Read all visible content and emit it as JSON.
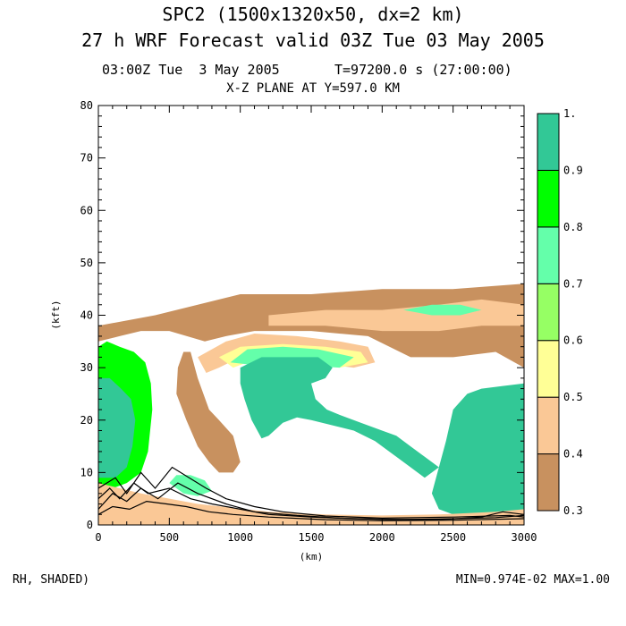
{
  "header": {
    "title_line1": "SPC2 (1500x1320x50, dx=2 km)",
    "title_line2": "27 h WRF Forecast valid 03Z Tue 03 May 2005",
    "time_left": "03:00Z Tue  3 May 2005",
    "time_right": "T=97200.0 s (27:00:00)",
    "plane": "X-Z PLANE AT Y=597.0 KM"
  },
  "footer": {
    "field": "RH, SHADED)",
    "minmax": "MIN=0.974E-02 MAX=1.00"
  },
  "chart_data": {
    "type": "heatmap",
    "title": "X-Z PLANE AT Y=597.0 KM",
    "xlabel": "(km)",
    "ylabel": "(kft)",
    "xlim": [
      0,
      3000
    ],
    "ylim": [
      0,
      80
    ],
    "xticks": [
      "0",
      "500",
      "1000",
      "1500",
      "2000",
      "2500",
      "3000"
    ],
    "yticks": [
      "0",
      "10",
      "20",
      "30",
      "40",
      "50",
      "60",
      "70",
      "80"
    ],
    "colorbar": {
      "levels": [
        "0.3",
        "0.4",
        "0.5",
        "0.6",
        "0.7",
        "0.8",
        "0.9",
        "1."
      ],
      "colors": [
        "#c8915f",
        "#fac896",
        "#ffff96",
        "#96ff64",
        "#64ffaa",
        "#00ff00",
        "#32c896"
      ]
    },
    "fields": [
      {
        "name": "band-upper-brown",
        "level": 0.35,
        "points": [
          [
            0,
            38
          ],
          [
            400,
            40
          ],
          [
            1000,
            44
          ],
          [
            1500,
            44
          ],
          [
            2000,
            45
          ],
          [
            2500,
            45
          ],
          [
            3000,
            46
          ],
          [
            3000,
            30
          ],
          [
            2800,
            33
          ],
          [
            2500,
            32
          ],
          [
            2200,
            32
          ],
          [
            1900,
            36
          ],
          [
            1500,
            37
          ],
          [
            1100,
            37
          ],
          [
            900,
            36
          ],
          [
            750,
            35
          ],
          [
            500,
            37
          ],
          [
            300,
            37
          ],
          [
            150,
            36
          ],
          [
            0,
            35
          ]
        ]
      },
      {
        "name": "upper-peach-streaks",
        "level": 0.45,
        "points": [
          [
            1200,
            40
          ],
          [
            1600,
            41
          ],
          [
            2000,
            41
          ],
          [
            2400,
            42
          ],
          [
            2700,
            43
          ],
          [
            3000,
            42
          ],
          [
            3000,
            38
          ],
          [
            2700,
            38
          ],
          [
            2400,
            37
          ],
          [
            2000,
            37
          ],
          [
            1600,
            38
          ],
          [
            1200,
            38
          ]
        ]
      },
      {
        "name": "upper-green-streak",
        "level": 0.75,
        "points": [
          [
            2150,
            41
          ],
          [
            2350,
            42
          ],
          [
            2550,
            42
          ],
          [
            2700,
            41
          ],
          [
            2550,
            40
          ],
          [
            2350,
            40
          ]
        ]
      },
      {
        "name": "arc-peach",
        "level": 0.45,
        "points": [
          [
            700,
            32
          ],
          [
            900,
            35
          ],
          [
            1100,
            36.5
          ],
          [
            1400,
            36
          ],
          [
            1700,
            35
          ],
          [
            1900,
            34
          ],
          [
            1950,
            31
          ],
          [
            1800,
            30
          ],
          [
            1500,
            31
          ],
          [
            1200,
            32.5
          ],
          [
            1000,
            32
          ],
          [
            850,
            30
          ],
          [
            760,
            29
          ]
        ]
      },
      {
        "name": "arc-yellow",
        "level": 0.55,
        "points": [
          [
            850,
            32
          ],
          [
            1000,
            34
          ],
          [
            1300,
            34.5
          ],
          [
            1600,
            34
          ],
          [
            1850,
            33
          ],
          [
            1900,
            31
          ],
          [
            1700,
            30
          ],
          [
            1400,
            31
          ],
          [
            1100,
            31.5
          ],
          [
            950,
            30
          ]
        ]
      },
      {
        "name": "arc-green",
        "level": 0.7,
        "points": [
          [
            930,
            31
          ],
          [
            1050,
            33.5
          ],
          [
            1300,
            34
          ],
          [
            1550,
            33.5
          ],
          [
            1800,
            32
          ],
          [
            1700,
            30
          ],
          [
            1400,
            30.5
          ],
          [
            1100,
            30.5
          ]
        ]
      },
      {
        "name": "core-left",
        "level": 0.95,
        "points": [
          [
            1000,
            30
          ],
          [
            1150,
            32
          ],
          [
            1350,
            32
          ],
          [
            1550,
            32
          ],
          [
            1650,
            30
          ],
          [
            1600,
            28
          ],
          [
            1500,
            27
          ],
          [
            1530,
            24
          ],
          [
            1610,
            22
          ],
          [
            1700,
            21
          ],
          [
            1850,
            19.5
          ],
          [
            2000,
            18
          ],
          [
            2100,
            17
          ],
          [
            2200,
            15
          ],
          [
            2300,
            13
          ],
          [
            2400,
            11
          ],
          [
            2300,
            9
          ],
          [
            2200,
            11
          ],
          [
            2100,
            13
          ],
          [
            1950,
            16
          ],
          [
            1800,
            18
          ],
          [
            1650,
            19
          ],
          [
            1500,
            20
          ],
          [
            1400,
            20.5
          ],
          [
            1300,
            19.5
          ],
          [
            1200,
            17
          ],
          [
            1150,
            16.5
          ],
          [
            1080,
            20
          ],
          [
            1030,
            24
          ],
          [
            1000,
            27
          ]
        ]
      },
      {
        "name": "core-right",
        "level": 0.95,
        "points": [
          [
            2400,
            11
          ],
          [
            2450,
            16
          ],
          [
            2500,
            22
          ],
          [
            2600,
            25
          ],
          [
            2700,
            26
          ],
          [
            2850,
            26.5
          ],
          [
            3000,
            27
          ],
          [
            3000,
            2
          ],
          [
            2700,
            2
          ],
          [
            2500,
            2
          ],
          [
            2400,
            3
          ],
          [
            2350,
            6
          ]
        ]
      },
      {
        "name": "left-column-green",
        "level": 0.85,
        "points": [
          [
            0,
            34
          ],
          [
            60,
            35
          ],
          [
            150,
            34
          ],
          [
            250,
            33
          ],
          [
            330,
            31
          ],
          [
            370,
            27
          ],
          [
            380,
            22
          ],
          [
            350,
            14
          ],
          [
            300,
            10
          ],
          [
            200,
            8
          ],
          [
            100,
            7
          ],
          [
            0,
            7
          ]
        ]
      },
      {
        "name": "left-column-core",
        "level": 0.95,
        "points": [
          [
            0,
            28
          ],
          [
            80,
            28
          ],
          [
            160,
            26
          ],
          [
            230,
            24
          ],
          [
            260,
            20
          ],
          [
            240,
            15
          ],
          [
            200,
            11
          ],
          [
            120,
            9
          ],
          [
            40,
            9
          ],
          [
            0,
            9
          ]
        ]
      },
      {
        "name": "plume-brown",
        "level": 0.35,
        "points": [
          [
            550,
            25
          ],
          [
            620,
            20
          ],
          [
            700,
            15
          ],
          [
            780,
            12
          ],
          [
            850,
            10
          ],
          [
            950,
            10
          ],
          [
            1000,
            12
          ],
          [
            950,
            17
          ],
          [
            850,
            20
          ],
          [
            780,
            22
          ],
          [
            700,
            28
          ],
          [
            650,
            33
          ],
          [
            600,
            33
          ],
          [
            560,
            30
          ]
        ]
      },
      {
        "name": "lower-peach",
        "level": 0.45,
        "points": [
          [
            0,
            8
          ],
          [
            300,
            6
          ],
          [
            700,
            4
          ],
          [
            1200,
            2.5
          ],
          [
            1600,
            2
          ],
          [
            2000,
            1.8
          ],
          [
            2400,
            2
          ],
          [
            2800,
            2.5
          ],
          [
            3000,
            3
          ],
          [
            3000,
            0
          ],
          [
            0,
            0
          ]
        ]
      },
      {
        "name": "lower-green-cells",
        "level": 0.75,
        "points": [
          [
            500,
            8
          ],
          [
            600,
            6
          ],
          [
            700,
            5.5
          ],
          [
            800,
            6.5
          ],
          [
            750,
            8.5
          ],
          [
            650,
            9.5
          ],
          [
            550,
            9.5
          ]
        ]
      }
    ],
    "contour_lines": [
      {
        "name": "sfc-contour-1",
        "points": [
          [
            0,
            5
          ],
          [
            80,
            7
          ],
          [
            150,
            5
          ],
          [
            250,
            8
          ],
          [
            350,
            6
          ],
          [
            500,
            7
          ],
          [
            650,
            5
          ],
          [
            800,
            4
          ],
          [
            1000,
            3
          ],
          [
            1200,
            2
          ],
          [
            1500,
            1.5
          ],
          [
            1800,
            1.2
          ],
          [
            2100,
            1
          ],
          [
            2500,
            1.2
          ],
          [
            2800,
            1.4
          ],
          [
            3000,
            1.8
          ]
        ]
      },
      {
        "name": "sfc-contour-2",
        "points": [
          [
            0,
            3
          ],
          [
            100,
            6
          ],
          [
            200,
            4.5
          ],
          [
            300,
            7
          ],
          [
            420,
            5
          ],
          [
            560,
            8
          ],
          [
            700,
            6
          ],
          [
            900,
            4
          ],
          [
            1100,
            2.5
          ],
          [
            1400,
            1.8
          ],
          [
            1700,
            1.3
          ],
          [
            2000,
            1.1
          ],
          [
            2400,
            1
          ],
          [
            2700,
            1.5
          ],
          [
            2850,
            2.5
          ],
          [
            3000,
            2
          ]
        ]
      },
      {
        "name": "sfc-contour-3",
        "points": [
          [
            0,
            7
          ],
          [
            120,
            9
          ],
          [
            200,
            6
          ],
          [
            300,
            10
          ],
          [
            400,
            7
          ],
          [
            520,
            11
          ],
          [
            640,
            9
          ],
          [
            760,
            7
          ],
          [
            900,
            5
          ],
          [
            1100,
            3.5
          ],
          [
            1300,
            2.5
          ],
          [
            1600,
            1.7
          ],
          [
            2000,
            1.3
          ],
          [
            2500,
            1.5
          ],
          [
            2900,
            1.8
          ],
          [
            3000,
            1.5
          ]
        ]
      },
      {
        "name": "sfc-contour-4",
        "points": [
          [
            0,
            2
          ],
          [
            100,
            3.5
          ],
          [
            220,
            3
          ],
          [
            340,
            4.5
          ],
          [
            480,
            4
          ],
          [
            620,
            3.5
          ],
          [
            780,
            2.5
          ],
          [
            950,
            2
          ],
          [
            1200,
            1.5
          ],
          [
            1600,
            1
          ],
          [
            2000,
            0.8
          ],
          [
            2500,
            0.9
          ],
          [
            3000,
            1.2
          ]
        ]
      }
    ]
  }
}
